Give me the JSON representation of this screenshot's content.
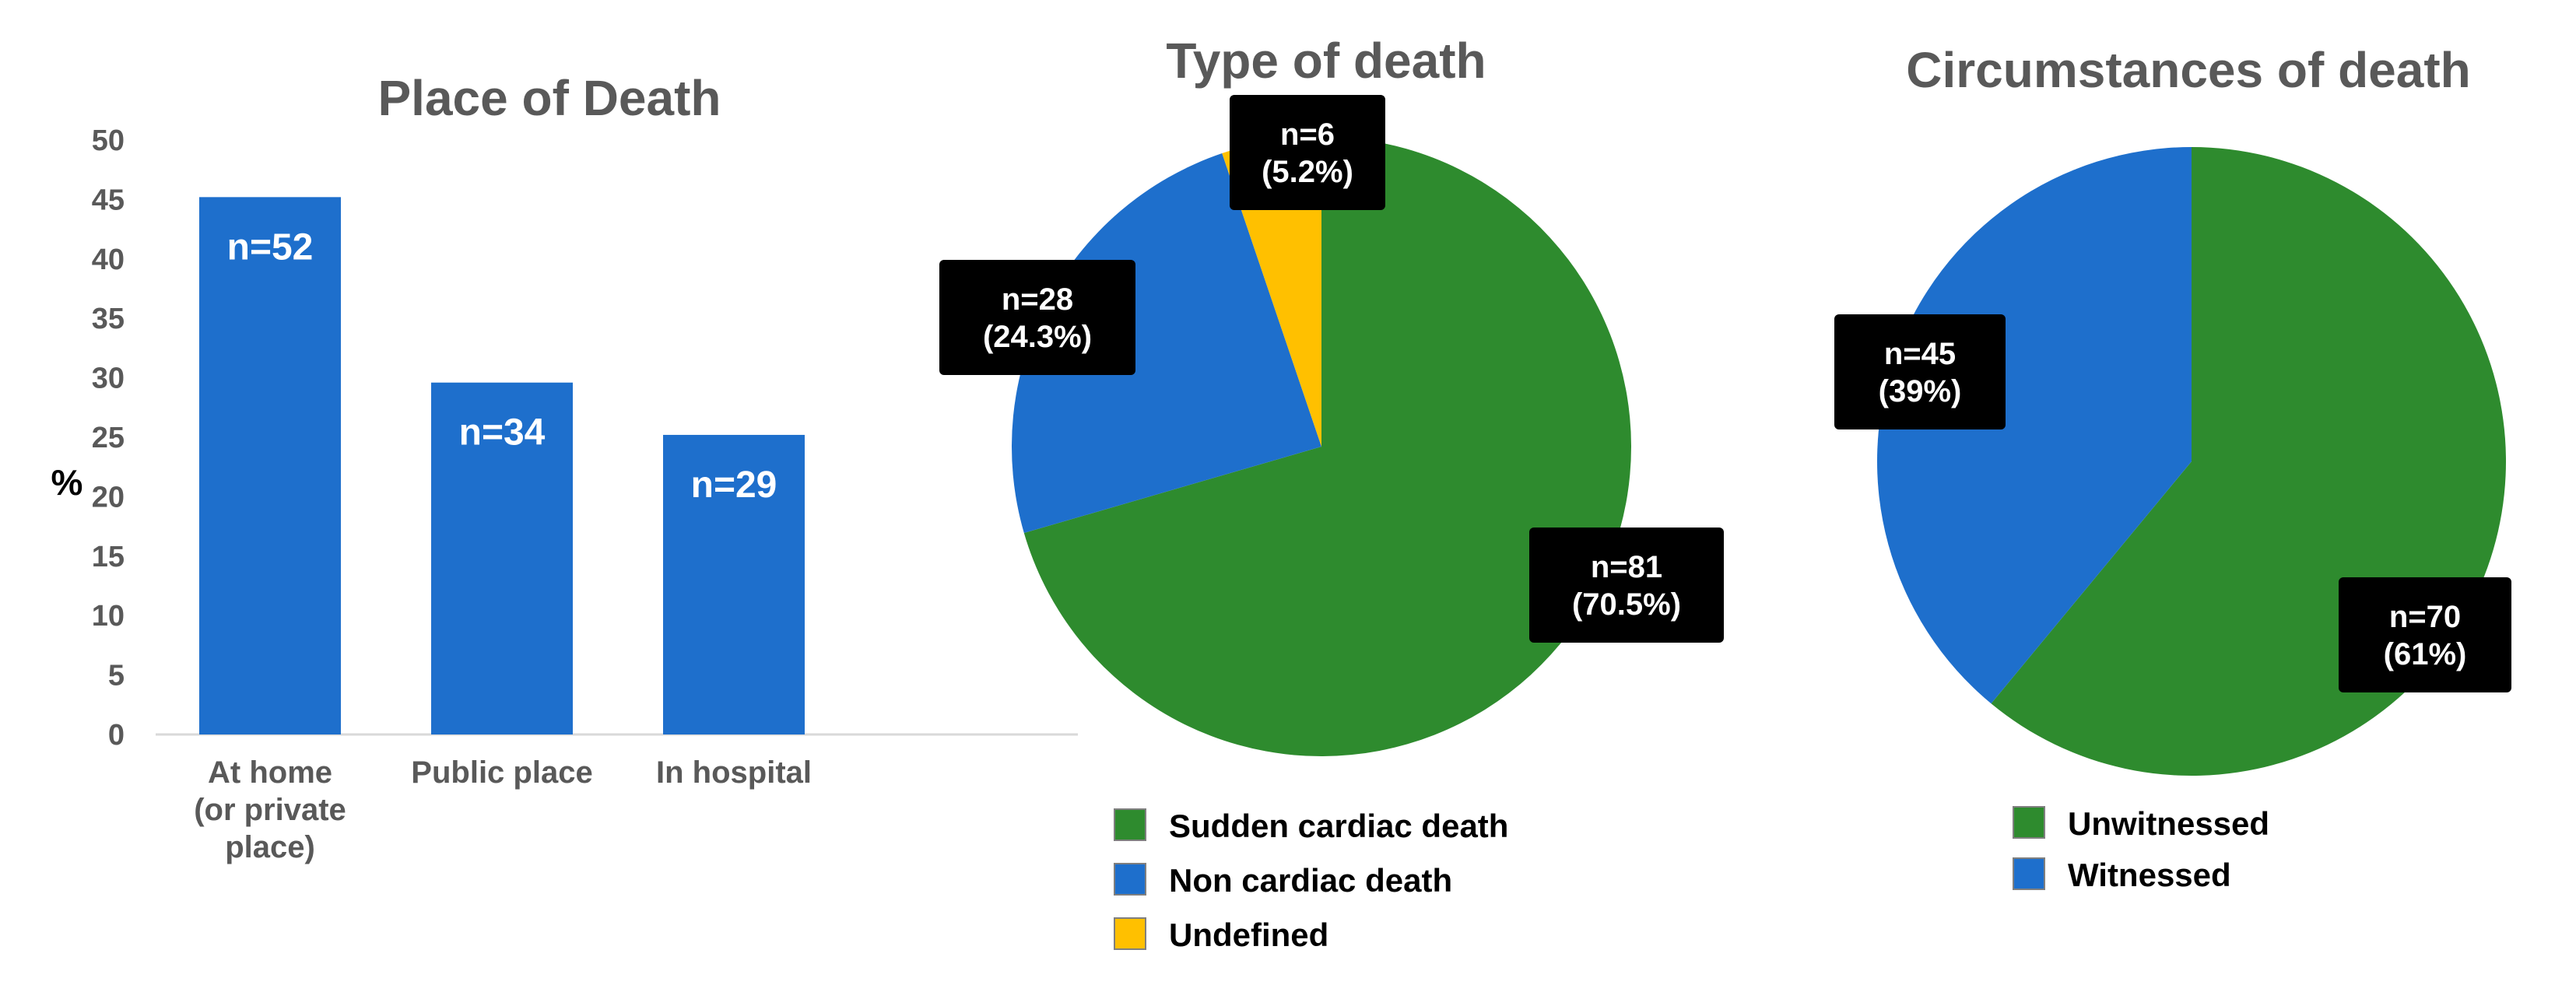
{
  "chart_data": [
    {
      "type": "bar",
      "title": "Place of Death",
      "ylabel": "%",
      "ylim": [
        0,
        50
      ],
      "yticks": [
        0,
        5,
        10,
        15,
        20,
        25,
        30,
        35,
        40,
        45,
        50
      ],
      "categories": [
        [
          "At home",
          "(or private",
          "place)"
        ],
        [
          "Public place"
        ],
        [
          "In hospital"
        ]
      ],
      "values": [
        45.2,
        29.6,
        25.2
      ],
      "data_labels": [
        "n=52",
        "n=34",
        "n=29"
      ],
      "color": "#1E6FCC",
      "grid": false
    },
    {
      "type": "pie",
      "title": "Type of death",
      "slices": [
        {
          "name": "Sudden cardiac death",
          "value": 70.5,
          "label": [
            "n=81",
            "(70.5%)"
          ],
          "color": "#2E8B2E"
        },
        {
          "name": "Non cardiac death",
          "value": 24.3,
          "label": [
            "n=28",
            "(24.3%)"
          ],
          "color": "#1E6FCC"
        },
        {
          "name": "Undefined",
          "value": 5.2,
          "label": [
            "n=6",
            "(5.2%)"
          ],
          "color": "#FFC000"
        }
      ],
      "legend_position": "bottom"
    },
    {
      "type": "pie",
      "title": "Circumstances of death",
      "slices": [
        {
          "name": "Unwitnessed",
          "value": 61,
          "label": [
            "n=70",
            "(61%)"
          ],
          "color": "#2E8B2E"
        },
        {
          "name": "Witnessed",
          "value": 39,
          "label": [
            "n=45",
            "(39%)"
          ],
          "color": "#1E6FCC"
        }
      ],
      "legend_position": "bottom"
    }
  ]
}
